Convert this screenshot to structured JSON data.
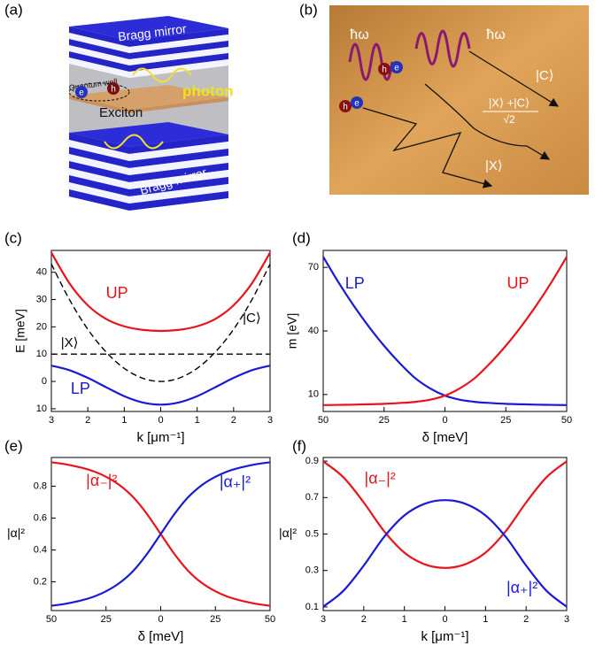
{
  "panel_labels": [
    "(a)",
    "(b)",
    "(c)",
    "(d)",
    "(e)",
    "(f)"
  ],
  "illustrations": {
    "a": {
      "bragg_top": "Bragg mirror",
      "bragg_bottom": "Bragg mirror",
      "quantum_well": "Quantum well",
      "photon": "photon",
      "exciton": "Exciton",
      "hole": "h",
      "electron": "e"
    },
    "b": {
      "photon_left": "ħω",
      "photon_right": "ħω",
      "cavity": "|C⟩",
      "exciton": "|X⟩",
      "polariton_numerator": "|X⟩ +|C⟩",
      "polariton_denominator": "√2",
      "hole": "h",
      "electron": "e"
    }
  },
  "chart_data": [
    {
      "type": "line",
      "xlabel": "k [μm⁻¹]",
      "ylabel": "E [meV]",
      "x": [
        -3,
        -2.5,
        -2,
        -1.5,
        -1,
        -0.5,
        0,
        0.5,
        1,
        1.5,
        2,
        2.5,
        3
      ],
      "xlim": [
        -3,
        3
      ],
      "ylim": [
        -11,
        48
      ],
      "xticks": [
        {
          "value": -3,
          "label": "3"
        },
        {
          "value": -2,
          "label": "2"
        },
        {
          "value": -1,
          "label": "1"
        },
        0,
        1,
        2,
        3
      ],
      "yticks": [
        {
          "value": -10,
          "label": "10"
        },
        0,
        10,
        20,
        30,
        40
      ],
      "series": [
        {
          "name": "UP",
          "color": "#e8141c",
          "values": [
            47.2,
            35.9,
            27.9,
            22.9,
            20.2,
            18.9,
            18.5,
            18.9,
            20.2,
            22.9,
            27.9,
            35.9,
            47.2
          ]
        },
        {
          "name": "LP",
          "color": "#1a1ad6",
          "values": [
            5.8,
            4.1,
            1.3,
            -2.1,
            -5.4,
            -7.7,
            -8.5,
            -7.7,
            -5.4,
            -2.1,
            1.3,
            4.1,
            5.8
          ]
        },
        {
          "name": "|X⟩",
          "color": "#000000",
          "dash": true,
          "values": [
            10,
            10,
            10,
            10,
            10,
            10,
            10,
            10,
            10,
            10,
            10,
            10,
            10
          ]
        },
        {
          "name": "|C⟩",
          "color": "#000000",
          "dash": true,
          "values": [
            43,
            29.9,
            19.1,
            10.8,
            4.8,
            1.2,
            0,
            1.2,
            4.8,
            10.8,
            19.1,
            29.9,
            43
          ]
        }
      ]
    },
    {
      "type": "line",
      "xlabel": "δ [meV]",
      "ylabel": "m [eV]",
      "x": [
        -50,
        -43.75,
        -37.5,
        -31.25,
        -25,
        -18.75,
        -12.5,
        -6.25,
        0,
        6.25,
        12.5,
        18.75,
        25,
        31.25,
        37.5,
        43.75,
        50
      ],
      "xlim": [
        -50,
        50
      ],
      "ylim": [
        2,
        78
      ],
      "xticks": [
        {
          "value": -50,
          "label": "50"
        },
        {
          "value": -25,
          "label": "25"
        },
        0,
        25,
        50
      ],
      "yticks": [
        10,
        40,
        70
      ],
      "series": [
        {
          "name": "LP",
          "color": "#1a1ad6",
          "values": [
            75,
            63,
            52,
            42,
            33,
            25,
            18,
            13,
            9.5,
            7.5,
            6.5,
            6,
            5.6,
            5.4,
            5.2,
            5.1,
            5.0
          ]
        },
        {
          "name": "UP",
          "color": "#e8141c",
          "values": [
            5.0,
            5.1,
            5.2,
            5.4,
            5.6,
            6,
            6.5,
            7.5,
            9.5,
            13,
            18,
            25,
            33,
            42,
            52,
            63,
            75
          ]
        }
      ]
    },
    {
      "type": "line",
      "xlabel": "δ [meV]",
      "ylabel": "|α|²",
      "x": [
        -50,
        -43.75,
        -37.5,
        -31.25,
        -25,
        -18.75,
        -12.5,
        -6.25,
        0,
        6.25,
        12.5,
        18.75,
        25,
        31.25,
        37.5,
        43.75,
        50
      ],
      "xlim": [
        -50,
        50
      ],
      "ylim": [
        0.02,
        0.98
      ],
      "xticks": [
        {
          "value": -50,
          "label": "50"
        },
        {
          "value": -25,
          "label": "25"
        },
        0,
        25,
        50
      ],
      "yticks": [
        0.2,
        0.4,
        0.6,
        0.8
      ],
      "series": [
        {
          "name": "|α₋|²",
          "color": "#e8141c",
          "values": [
            0.95,
            0.938,
            0.92,
            0.896,
            0.859,
            0.806,
            0.73,
            0.625,
            0.5,
            0.375,
            0.27,
            0.194,
            0.141,
            0.104,
            0.08,
            0.062,
            0.05
          ]
        },
        {
          "name": "|α₊|²",
          "color": "#1a1ad6",
          "values": [
            0.05,
            0.062,
            0.08,
            0.104,
            0.141,
            0.194,
            0.27,
            0.375,
            0.5,
            0.625,
            0.73,
            0.806,
            0.859,
            0.896,
            0.92,
            0.938,
            0.95
          ]
        }
      ]
    },
    {
      "type": "line",
      "xlabel": "k [μm⁻¹]",
      "ylabel": "|α|²",
      "x": [
        -3,
        -2.5,
        -2,
        -1.5,
        -1,
        -0.5,
        0,
        0.5,
        1,
        1.5,
        2,
        2.5,
        3
      ],
      "xlim": [
        -3,
        3
      ],
      "ylim": [
        0.08,
        0.92
      ],
      "xticks": [
        {
          "value": -3,
          "label": "3"
        },
        {
          "value": -2,
          "label": "2"
        },
        {
          "value": -1,
          "label": "1"
        },
        0,
        1,
        2,
        3
      ],
      "yticks": [
        0.1,
        0.3,
        0.5,
        0.7,
        0.9
      ],
      "series": [
        {
          "name": "|α₋|²",
          "color": "#e8141c",
          "values": [
            0.899,
            0.811,
            0.673,
            0.516,
            0.398,
            0.334,
            0.314,
            0.334,
            0.398,
            0.516,
            0.673,
            0.811,
            0.899
          ]
        },
        {
          "name": "|α₊|²",
          "color": "#1a1ad6",
          "values": [
            0.101,
            0.189,
            0.327,
            0.484,
            0.602,
            0.666,
            0.686,
            0.666,
            0.602,
            0.484,
            0.327,
            0.189,
            0.101
          ]
        }
      ]
    }
  ]
}
